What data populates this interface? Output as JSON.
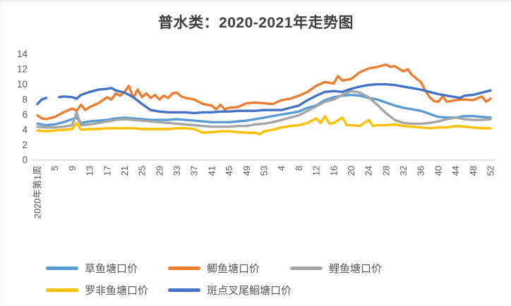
{
  "chart_data": {
    "type": "line",
    "title": "普水类：2020-2021年走势图",
    "xlabel": "",
    "ylabel": "",
    "x_axis": {
      "description": "weekly index; 0 = 2020 week 1, 52 = 2020 week 53, 104 = 2021 week 52",
      "tick_labels": [
        "2020年第1周",
        "5",
        "9",
        "13",
        "17",
        "21",
        "25",
        "29",
        "33",
        "37",
        "41",
        "45",
        "49",
        "53",
        "4",
        "8",
        "12",
        "16",
        "20",
        "24",
        "28",
        "32",
        "36",
        "40",
        "44",
        "48",
        "52"
      ],
      "tick_positions": [
        0,
        4,
        8,
        12,
        16,
        20,
        24,
        28,
        32,
        36,
        40,
        44,
        48,
        52,
        56,
        60,
        64,
        68,
        72,
        76,
        80,
        84,
        88,
        92,
        96,
        100,
        104
      ]
    },
    "y_axis": {
      "min": 0,
      "max": 14,
      "step": 2,
      "ticks": [
        0,
        2,
        4,
        6,
        8,
        10,
        12,
        14
      ]
    },
    "grid": false,
    "legend_position": "bottom",
    "legend_rows": [
      [
        0,
        1,
        2
      ],
      [
        3,
        4
      ]
    ],
    "colors": {
      "axis_line": "#d9d9d9",
      "tick_text": "#595959",
      "title_text": "#3f3f3f"
    },
    "series": [
      {
        "name": "草鱼塘口价",
        "color": "#5B9BD5",
        "points": [
          [
            0,
            4.8
          ],
          [
            2,
            4.6
          ],
          [
            4,
            4.7
          ],
          [
            6,
            5.0
          ],
          [
            8,
            5.4
          ],
          [
            9,
            5.6
          ],
          [
            10,
            4.9
          ],
          [
            12,
            5.1
          ],
          [
            14,
            5.2
          ],
          [
            16,
            5.3
          ],
          [
            18,
            5.5
          ],
          [
            20,
            5.6
          ],
          [
            22,
            5.5
          ],
          [
            24,
            5.4
          ],
          [
            26,
            5.3
          ],
          [
            28,
            5.3
          ],
          [
            30,
            5.3
          ],
          [
            32,
            5.4
          ],
          [
            34,
            5.3
          ],
          [
            36,
            5.2
          ],
          [
            38,
            5.1
          ],
          [
            40,
            5.0
          ],
          [
            42,
            5.0
          ],
          [
            44,
            5.0
          ],
          [
            46,
            5.1
          ],
          [
            48,
            5.2
          ],
          [
            50,
            5.4
          ],
          [
            52,
            5.6
          ],
          [
            54,
            5.8
          ],
          [
            56,
            6.0
          ],
          [
            58,
            6.2
          ],
          [
            60,
            6.4
          ],
          [
            62,
            6.9
          ],
          [
            64,
            7.2
          ],
          [
            66,
            7.9
          ],
          [
            68,
            8.3
          ],
          [
            70,
            8.5
          ],
          [
            72,
            8.6
          ],
          [
            74,
            8.5
          ],
          [
            76,
            8.2
          ],
          [
            78,
            8.0
          ],
          [
            80,
            7.6
          ],
          [
            82,
            7.2
          ],
          [
            84,
            6.9
          ],
          [
            86,
            6.7
          ],
          [
            88,
            6.5
          ],
          [
            90,
            6.1
          ],
          [
            92,
            5.7
          ],
          [
            94,
            5.6
          ],
          [
            96,
            5.6
          ],
          [
            98,
            5.8
          ],
          [
            100,
            5.8
          ],
          [
            102,
            5.7
          ],
          [
            104,
            5.6
          ]
        ]
      },
      {
        "name": "鲫鱼塘口价",
        "color": "#ED7D31",
        "points": [
          [
            0,
            5.9
          ],
          [
            1,
            5.5
          ],
          [
            2,
            5.4
          ],
          [
            4,
            5.7
          ],
          [
            6,
            6.3
          ],
          [
            8,
            6.8
          ],
          [
            9,
            6.5
          ],
          [
            10,
            7.3
          ],
          [
            11,
            6.6
          ],
          [
            12,
            7.0
          ],
          [
            14,
            7.5
          ],
          [
            16,
            8.3
          ],
          [
            17,
            8.0
          ],
          [
            18,
            8.8
          ],
          [
            19,
            8.5
          ],
          [
            20,
            9.0
          ],
          [
            21,
            9.8
          ],
          [
            22,
            8.2
          ],
          [
            23,
            9.3
          ],
          [
            24,
            8.3
          ],
          [
            25,
            8.8
          ],
          [
            26,
            8.2
          ],
          [
            27,
            8.6
          ],
          [
            28,
            8.0
          ],
          [
            29,
            8.5
          ],
          [
            30,
            8.2
          ],
          [
            31,
            8.8
          ],
          [
            32,
            8.9
          ],
          [
            33,
            8.4
          ],
          [
            34,
            8.2
          ],
          [
            36,
            8.0
          ],
          [
            38,
            7.4
          ],
          [
            40,
            7.2
          ],
          [
            41,
            6.7
          ],
          [
            42,
            7.3
          ],
          [
            43,
            6.7
          ],
          [
            44,
            6.9
          ],
          [
            46,
            7.0
          ],
          [
            48,
            7.5
          ],
          [
            50,
            7.6
          ],
          [
            52,
            7.5
          ],
          [
            54,
            7.4
          ],
          [
            56,
            7.9
          ],
          [
            58,
            8.1
          ],
          [
            60,
            8.5
          ],
          [
            62,
            9.0
          ],
          [
            64,
            9.8
          ],
          [
            66,
            10.3
          ],
          [
            68,
            10.1
          ],
          [
            69,
            11.1
          ],
          [
            70,
            10.5
          ],
          [
            72,
            10.7
          ],
          [
            74,
            11.6
          ],
          [
            76,
            12.1
          ],
          [
            78,
            12.3
          ],
          [
            80,
            12.6
          ],
          [
            81,
            12.3
          ],
          [
            82,
            12.4
          ],
          [
            84,
            11.7
          ],
          [
            85,
            12.0
          ],
          [
            86,
            11.2
          ],
          [
            88,
            10.3
          ],
          [
            89,
            9.2
          ],
          [
            90,
            8.3
          ],
          [
            91,
            7.8
          ],
          [
            92,
            7.7
          ],
          [
            93,
            8.4
          ],
          [
            94,
            7.7
          ],
          [
            96,
            7.9
          ],
          [
            98,
            8.0
          ],
          [
            100,
            7.9
          ],
          [
            102,
            8.4
          ],
          [
            103,
            7.7
          ],
          [
            104,
            8.1
          ]
        ]
      },
      {
        "name": "鲤鱼塘口价",
        "color": "#A5A5A5",
        "points": [
          [
            0,
            4.4
          ],
          [
            2,
            4.3
          ],
          [
            4,
            4.3
          ],
          [
            6,
            4.4
          ],
          [
            8,
            4.6
          ],
          [
            9,
            6.3
          ],
          [
            10,
            4.6
          ],
          [
            12,
            4.7
          ],
          [
            14,
            4.9
          ],
          [
            16,
            5.1
          ],
          [
            18,
            5.3
          ],
          [
            20,
            5.4
          ],
          [
            22,
            5.3
          ],
          [
            24,
            5.2
          ],
          [
            26,
            5.1
          ],
          [
            28,
            5.0
          ],
          [
            30,
            4.9
          ],
          [
            32,
            4.8
          ],
          [
            34,
            4.7
          ],
          [
            36,
            4.6
          ],
          [
            38,
            4.5
          ],
          [
            40,
            4.4
          ],
          [
            42,
            4.4
          ],
          [
            44,
            4.4
          ],
          [
            46,
            4.5
          ],
          [
            48,
            4.5
          ],
          [
            50,
            4.7
          ],
          [
            52,
            4.8
          ],
          [
            54,
            5.0
          ],
          [
            56,
            5.3
          ],
          [
            58,
            5.6
          ],
          [
            60,
            5.9
          ],
          [
            62,
            6.5
          ],
          [
            64,
            7.1
          ],
          [
            66,
            7.7
          ],
          [
            68,
            8.0
          ],
          [
            70,
            8.6
          ],
          [
            72,
            9.1
          ],
          [
            74,
            8.9
          ],
          [
            76,
            8.3
          ],
          [
            78,
            7.3
          ],
          [
            80,
            6.2
          ],
          [
            82,
            5.3
          ],
          [
            84,
            4.9
          ],
          [
            86,
            4.8
          ],
          [
            88,
            4.8
          ],
          [
            90,
            4.9
          ],
          [
            92,
            5.1
          ],
          [
            94,
            5.4
          ],
          [
            96,
            5.6
          ],
          [
            98,
            5.4
          ],
          [
            100,
            5.3
          ],
          [
            102,
            5.3
          ],
          [
            104,
            5.4
          ]
        ]
      },
      {
        "name": "罗非鱼塘口价",
        "color": "#FFC000",
        "points": [
          [
            0,
            3.9
          ],
          [
            2,
            3.8
          ],
          [
            4,
            3.9
          ],
          [
            6,
            4.0
          ],
          [
            8,
            4.1
          ],
          [
            9,
            4.9
          ],
          [
            10,
            4.0
          ],
          [
            12,
            4.1
          ],
          [
            14,
            4.1
          ],
          [
            16,
            4.2
          ],
          [
            18,
            4.2
          ],
          [
            20,
            4.2
          ],
          [
            22,
            4.2
          ],
          [
            24,
            4.1
          ],
          [
            26,
            4.1
          ],
          [
            28,
            4.1
          ],
          [
            30,
            4.1
          ],
          [
            32,
            4.2
          ],
          [
            34,
            4.2
          ],
          [
            36,
            4.1
          ],
          [
            38,
            3.6
          ],
          [
            40,
            3.7
          ],
          [
            42,
            3.8
          ],
          [
            44,
            3.8
          ],
          [
            46,
            3.7
          ],
          [
            48,
            3.6
          ],
          [
            50,
            3.6
          ],
          [
            51,
            3.4
          ],
          [
            52,
            3.8
          ],
          [
            54,
            4.0
          ],
          [
            56,
            4.3
          ],
          [
            58,
            4.5
          ],
          [
            60,
            4.6
          ],
          [
            62,
            4.9
          ],
          [
            64,
            5.5
          ],
          [
            65,
            4.9
          ],
          [
            66,
            5.8
          ],
          [
            67,
            4.8
          ],
          [
            68,
            4.9
          ],
          [
            70,
            5.6
          ],
          [
            71,
            4.6
          ],
          [
            72,
            4.6
          ],
          [
            74,
            4.5
          ],
          [
            76,
            5.3
          ],
          [
            77,
            4.5
          ],
          [
            78,
            4.6
          ],
          [
            80,
            4.6
          ],
          [
            82,
            4.7
          ],
          [
            84,
            4.5
          ],
          [
            86,
            4.4
          ],
          [
            88,
            4.3
          ],
          [
            90,
            4.2
          ],
          [
            92,
            4.3
          ],
          [
            94,
            4.3
          ],
          [
            96,
            4.5
          ],
          [
            98,
            4.4
          ],
          [
            100,
            4.3
          ],
          [
            102,
            4.2
          ],
          [
            104,
            4.2
          ]
        ]
      },
      {
        "name": "斑点叉尾鮰塘口价",
        "color": "#4472C4",
        "points": [
          [
            0,
            7.4
          ],
          [
            1,
            8.0
          ],
          [
            2,
            8.2
          ],
          [
            4,
            null
          ],
          [
            5,
            8.3
          ],
          [
            6,
            8.4
          ],
          [
            8,
            8.3
          ],
          [
            9,
            8.1
          ],
          [
            10,
            8.6
          ],
          [
            12,
            9.0
          ],
          [
            14,
            9.3
          ],
          [
            16,
            9.4
          ],
          [
            17,
            9.5
          ],
          [
            18,
            9.2
          ],
          [
            20,
            8.9
          ],
          [
            22,
            8.3
          ],
          [
            24,
            7.4
          ],
          [
            26,
            6.6
          ],
          [
            28,
            6.4
          ],
          [
            30,
            6.3
          ],
          [
            32,
            6.3
          ],
          [
            34,
            6.3
          ],
          [
            36,
            6.2
          ],
          [
            38,
            6.3
          ],
          [
            40,
            6.3
          ],
          [
            42,
            6.4
          ],
          [
            44,
            6.4
          ],
          [
            46,
            6.5
          ],
          [
            48,
            6.5
          ],
          [
            50,
            6.5
          ],
          [
            52,
            6.6
          ],
          [
            54,
            6.6
          ],
          [
            56,
            6.6
          ],
          [
            58,
            6.9
          ],
          [
            60,
            7.2
          ],
          [
            62,
            7.9
          ],
          [
            64,
            8.5
          ],
          [
            66,
            9.0
          ],
          [
            68,
            9.1
          ],
          [
            70,
            9.0
          ],
          [
            72,
            9.4
          ],
          [
            74,
            9.7
          ],
          [
            76,
            9.9
          ],
          [
            78,
            10.0
          ],
          [
            80,
            10.0
          ],
          [
            82,
            9.9
          ],
          [
            84,
            9.7
          ],
          [
            86,
            9.5
          ],
          [
            88,
            9.3
          ],
          [
            90,
            9.0
          ],
          [
            92,
            8.7
          ],
          [
            94,
            8.5
          ],
          [
            96,
            8.3
          ],
          [
            97,
            8.2
          ],
          [
            98,
            8.5
          ],
          [
            100,
            8.6
          ],
          [
            102,
            8.9
          ],
          [
            104,
            9.2
          ]
        ]
      }
    ]
  }
}
